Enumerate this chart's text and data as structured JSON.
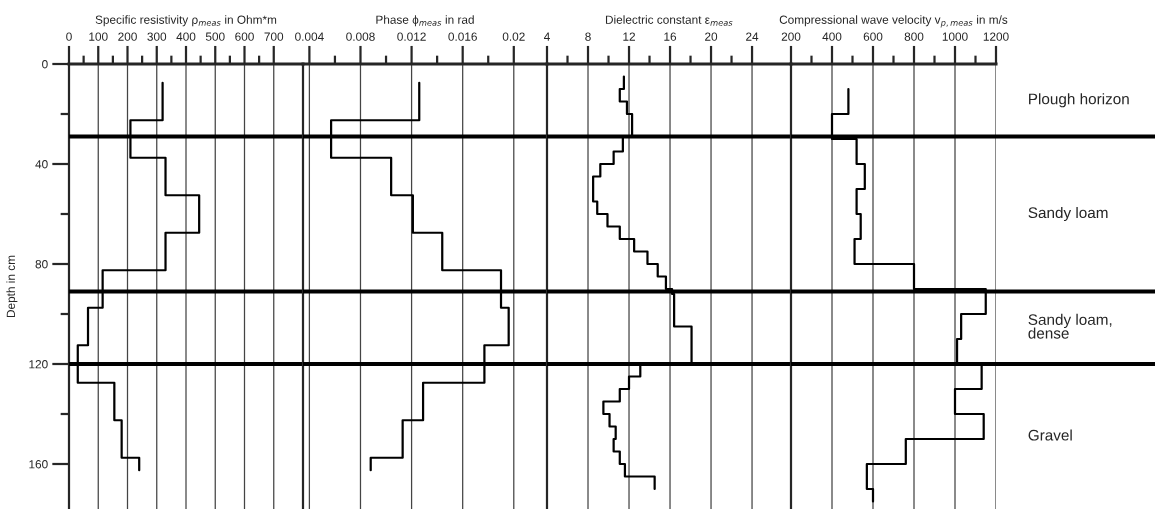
{
  "chart_data": [
    {
      "type": "step",
      "orientation": "horizontal",
      "xlabel": "Specific resistivity ρ$_{meas}$ in Ohm*m",
      "ylabel": "Depth in cm",
      "xlim": [
        0,
        800
      ],
      "xticks": [
        0,
        100,
        200,
        300,
        400,
        500,
        600,
        700,
        {
          "value": 50,
          "label": null
        },
        {
          "value": 150,
          "label": null
        },
        {
          "value": 250,
          "label": null
        },
        {
          "value": 350,
          "label": null
        },
        {
          "value": 450,
          "label": null
        },
        {
          "value": 550,
          "label": null
        },
        {
          "value": 650,
          "label": null
        }
      ],
      "ylim": [
        178,
        0
      ],
      "yticks": [
        0,
        40,
        80,
        120,
        160,
        {
          "value": 20,
          "label": null
        },
        {
          "value": 60,
          "label": null
        },
        {
          "value": 100,
          "label": null
        },
        {
          "value": 140,
          "label": null
        }
      ],
      "grid": "x",
      "ref_lines": [
        {
          "axis": "y",
          "value": 29
        },
        {
          "axis": "y",
          "value": 91
        },
        {
          "axis": "y",
          "value": 120
        }
      ],
      "series": [
        {
          "color": "#000000",
          "x": [
            7.5,
            22.5,
            37.5,
            52.5,
            67.5,
            82.5,
            97.5,
            112.5,
            127.5,
            142.5,
            157.5,
            162.5
          ],
          "values": [
            320,
            210,
            330,
            445,
            330,
            115,
            65,
            30,
            155,
            180,
            240,
            240
          ]
        }
      ]
    },
    {
      "type": "step",
      "orientation": "horizontal",
      "xlabel": "Phase ϕ$_{meas}$ in rad",
      "xlim": [
        0.0035,
        0.0226
      ],
      "xticks": [
        0.004,
        0.008,
        0.012,
        0.016,
        0.02,
        {
          "value": 0.006,
          "label": null
        },
        {
          "value": 0.01,
          "label": null
        },
        {
          "value": 0.014,
          "label": null
        },
        {
          "value": 0.018,
          "label": null
        }
      ],
      "ylim": [
        178,
        0
      ],
      "tick_labels": "x",
      "grid": "x",
      "ref_lines": [
        {
          "axis": "y",
          "value": 29
        },
        {
          "axis": "y",
          "value": 91
        },
        {
          "axis": "y",
          "value": 120
        }
      ],
      "series": [
        {
          "color": "#000000",
          "x": [
            7.5,
            22.5,
            37.5,
            52.5,
            67.5,
            82.5,
            97.5,
            112.5,
            127.5,
            142.5,
            157.5,
            162.5
          ],
          "values": [
            0.0126,
            0.0057,
            0.0104,
            0.0121,
            0.0144,
            0.019,
            0.0196,
            0.0177,
            0.0129,
            0.0113,
            0.0088,
            0.0088
          ]
        }
      ]
    },
    {
      "type": "step",
      "orientation": "horizontal",
      "xlabel": "Dielectric constant ε$_{meas}$",
      "xlim": [
        4,
        27.8
      ],
      "xticks": [
        4,
        8,
        12,
        16,
        20,
        24,
        {
          "value": 6,
          "label": null
        },
        {
          "value": 10,
          "label": null
        },
        {
          "value": 14,
          "label": null
        },
        {
          "value": 18,
          "label": null
        },
        {
          "value": 22,
          "label": null
        }
      ],
      "ylim": [
        178,
        0
      ],
      "tick_labels": "x",
      "grid": "x",
      "ref_lines": [
        {
          "axis": "y",
          "value": 29
        },
        {
          "axis": "y",
          "value": 91
        },
        {
          "axis": "y",
          "value": 120
        }
      ],
      "series": [
        {
          "color": "#000000",
          "x": [
            5,
            10,
            15,
            20,
            29,
            35,
            40,
            45,
            55,
            60,
            65,
            70,
            75,
            80,
            85,
            90,
            92,
            105,
            120,
            125,
            130,
            135,
            140,
            145,
            150,
            155,
            160,
            165,
            170
          ],
          "values": [
            11.5,
            11.1,
            11.8,
            12.3,
            11.4,
            10.5,
            9.2,
            8.5,
            8.9,
            9.9,
            11.1,
            12.5,
            13.8,
            14.8,
            15.6,
            16.2,
            16.4,
            18.1,
            13.1,
            12.0,
            11.1,
            9.5,
            10.1,
            10.7,
            10.5,
            11.1,
            11.6,
            14.5,
            14.5
          ]
        }
      ]
    },
    {
      "type": "step",
      "orientation": "horizontal",
      "xlabel": "Compressional wave velocity v$_{p,meas}$ in m/s",
      "xlim": [
        200,
        1200
      ],
      "xticks": [
        200,
        400,
        600,
        800,
        1000,
        1200,
        {
          "value": 300,
          "label": null
        },
        {
          "value": 500,
          "label": null
        },
        {
          "value": 700,
          "label": null
        },
        {
          "value": 900,
          "label": null
        },
        {
          "value": 1100,
          "label": null
        }
      ],
      "ylim": [
        178,
        0
      ],
      "tick_labels": "x",
      "grid": "x",
      "ref_lines": [
        {
          "axis": "y",
          "value": 29
        },
        {
          "axis": "y",
          "value": 91
        },
        {
          "axis": "y",
          "value": 120
        }
      ],
      "annotations": [
        "Plough horizon",
        "Sandy loam",
        "Sandy loam,\ndense",
        "Gravel"
      ],
      "series": [
        {
          "color": "#000000",
          "x": [
            10,
            20,
            30,
            40,
            50,
            60,
            70,
            80,
            90,
            100,
            110,
            120,
            130,
            140,
            150,
            160,
            170,
            175
          ],
          "values": [
            480,
            400,
            520,
            560,
            520,
            540,
            510,
            800,
            1150,
            1030,
            1010,
            1130,
            1000,
            1140,
            760,
            570,
            600,
            600
          ]
        }
      ]
    }
  ]
}
